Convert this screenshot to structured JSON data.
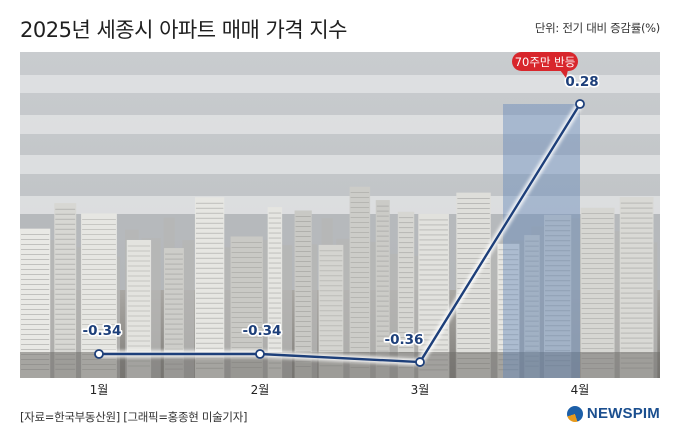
{
  "header": {
    "title": "2025년 세종시 아파트 매매 가격 지수",
    "unit": "단위: 전기 대비 증감률(%)"
  },
  "footer": {
    "source": "[자료=한국부동산원] [그래픽=홍종현 미술기자]",
    "logo": "NEWSPIM"
  },
  "colors": {
    "line": "#1d3f7a",
    "label": "#1d3f7a",
    "callout": "#d8262c",
    "highlight_column": "#5c82b8"
  },
  "chart_data": {
    "type": "line",
    "categories": [
      "1월",
      "2월",
      "3월",
      "4월"
    ],
    "series": [
      {
        "values": [
          -0.34,
          -0.34,
          -0.36,
          0.28
        ]
      }
    ],
    "data_labels": [
      "-0.34",
      "-0.34",
      "-0.36",
      "0.28"
    ],
    "annotation": {
      "category": "4월",
      "text": "70주만 반등"
    },
    "highlight_category": "4월",
    "background": "photo of apartment buildings"
  }
}
